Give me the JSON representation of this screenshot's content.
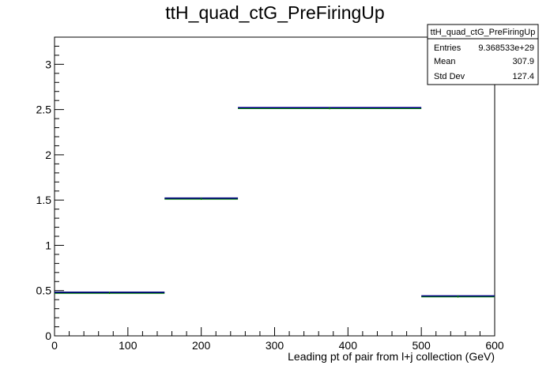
{
  "chart_data": {
    "type": "histogram",
    "title": "ttH_quad_ctG_PreFiringUp",
    "xlabel": "Leading pt of pair from l+j collection (GeV)",
    "ylabel": "",
    "xlim": [
      0,
      600
    ],
    "ylim": [
      0,
      3.3
    ],
    "xticks": [
      0,
      100,
      200,
      300,
      400,
      500,
      600
    ],
    "xtick_labels": [
      "0",
      "100",
      "200",
      "300",
      "400",
      "500",
      "600"
    ],
    "yticks": [
      0,
      0.5,
      1,
      1.5,
      2,
      2.5,
      3
    ],
    "ytick_labels": [
      "0",
      "0.5",
      "1",
      "1.5",
      "2",
      "2.5",
      "3"
    ],
    "grid": false,
    "legend": "none",
    "bins": [
      {
        "low": 0,
        "high": 150,
        "value": 0.48
      },
      {
        "low": 150,
        "high": 250,
        "value": 1.52
      },
      {
        "low": 250,
        "high": 500,
        "value": 2.52
      },
      {
        "low": 500,
        "high": 600,
        "value": 0.44
      }
    ],
    "colors": {
      "line": "#000080",
      "error": "#008000"
    },
    "stats": {
      "name": "ttH_quad_ctG_PreFiringUp",
      "rows": [
        {
          "label": "Entries",
          "value": "9.368533e+29"
        },
        {
          "label": "Mean",
          "value": "307.9"
        },
        {
          "label": "Std Dev",
          "value": "127.4"
        }
      ]
    }
  }
}
